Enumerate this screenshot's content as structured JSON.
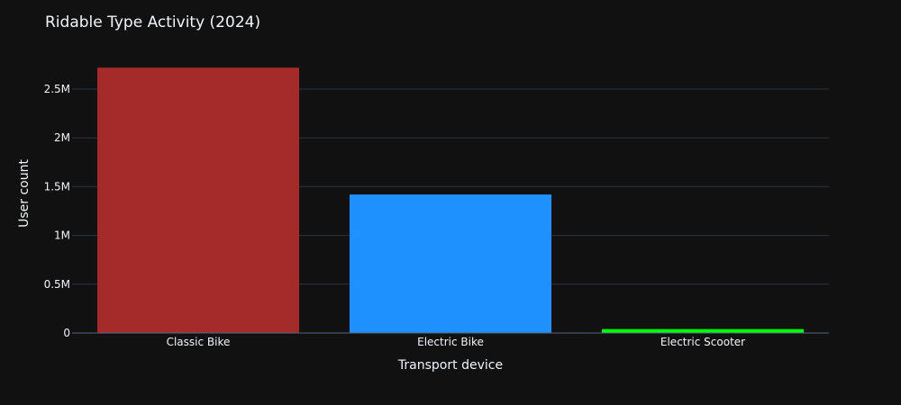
{
  "chart_data": {
    "type": "bar",
    "title": "Ridable Type Activity (2024)",
    "xlabel": "Transport device",
    "ylabel": "User count",
    "categories": [
      "Classic Bike",
      "Electric Bike",
      "Electric Scooter"
    ],
    "values": [
      2720000,
      1420000,
      40000
    ],
    "colors": [
      "#a52a2a",
      "#1e90ff",
      "#00ff00"
    ],
    "ylim": [
      0,
      2860000
    ],
    "yticks": [
      0,
      500000,
      1000000,
      1500000,
      2000000,
      2500000
    ],
    "ytick_labels": [
      "0",
      "0.5M",
      "1M",
      "1.5M",
      "2M",
      "2.5M"
    ],
    "grid": true,
    "background": "#111111",
    "grid_color": "#283442",
    "text_color": "#f2f5fa"
  }
}
